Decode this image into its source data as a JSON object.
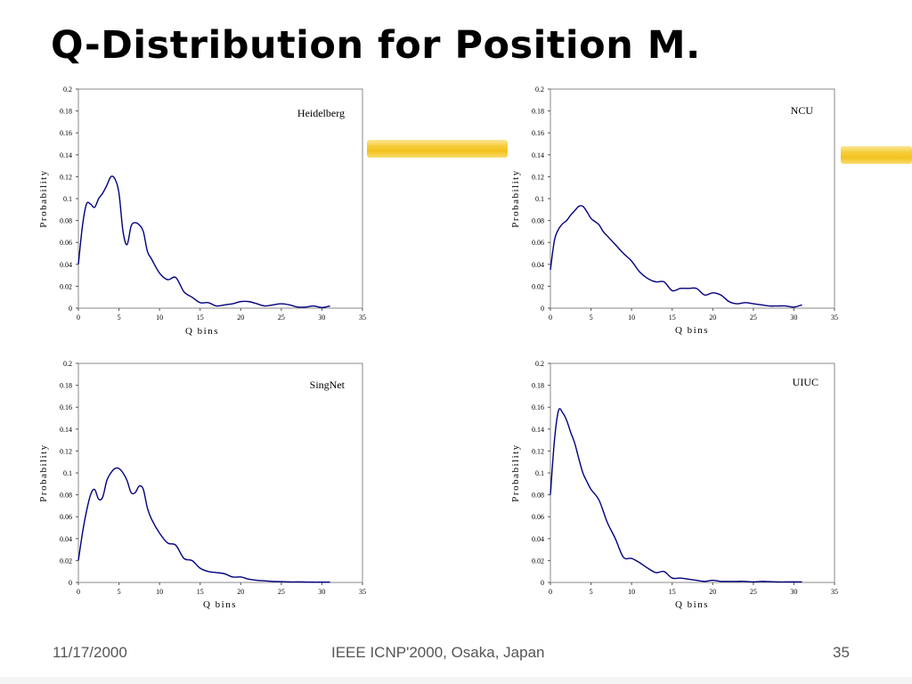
{
  "slide": {
    "title": "Q-Distribution for Position M.",
    "footer_date": "11/17/2000",
    "footer_conference": "IEEE ICNP'2000, Osaka, Japan",
    "footer_page": "35"
  },
  "colors": {
    "line": "#000080",
    "highlighter": "#f3c21f"
  },
  "chart_data": [
    {
      "type": "line",
      "label": "Heidelberg",
      "xlabel": "Q bins",
      "ylabel": "Probability",
      "xlim": [
        0,
        35
      ],
      "ylim": [
        0,
        0.2
      ],
      "xticks": [
        "0",
        "5",
        "10",
        "15",
        "20",
        "25",
        "30",
        "35"
      ],
      "yticks": [
        "0",
        "0.02",
        "0.04",
        "0.06",
        "0.08",
        "0.1",
        "0.12",
        "0.14",
        "0.16",
        "0.18",
        "0.2"
      ],
      "series": [
        {
          "x": [
            0,
            0.5,
            1,
            1.5,
            2,
            2.5,
            3,
            3.5,
            4,
            4.5,
            5,
            5.5,
            6,
            6.5,
            7,
            7.5,
            8,
            8.5,
            9,
            10,
            11,
            12,
            13,
            14,
            15,
            16,
            17,
            18,
            19,
            20,
            21,
            22,
            23,
            24,
            25,
            26,
            27,
            28,
            29,
            30,
            31
          ],
          "y": [
            0.04,
            0.075,
            0.095,
            0.095,
            0.092,
            0.1,
            0.105,
            0.112,
            0.12,
            0.118,
            0.105,
            0.07,
            0.058,
            0.075,
            0.078,
            0.076,
            0.07,
            0.052,
            0.045,
            0.032,
            0.026,
            0.028,
            0.015,
            0.01,
            0.005,
            0.005,
            0.002,
            0.003,
            0.004,
            0.006,
            0.006,
            0.004,
            0.002,
            0.003,
            0.004,
            0.003,
            0.001,
            0.001,
            0.002,
            0.0005,
            0.002
          ]
        }
      ]
    },
    {
      "type": "line",
      "label": "NCU",
      "xlabel": "Q bins",
      "ylabel": "Probability",
      "xlim": [
        0,
        35
      ],
      "ylim": [
        0,
        0.2
      ],
      "xticks": [
        "0",
        "5",
        "10",
        "15",
        "20",
        "25",
        "30",
        "35"
      ],
      "yticks": [
        "0",
        "0.02",
        "0.04",
        "0.06",
        "0.08",
        "0.1",
        "0.12",
        "0.14",
        "0.16",
        "0.18",
        "0.2"
      ],
      "series": [
        {
          "x": [
            0,
            0.5,
            1,
            1.5,
            2,
            2.5,
            3,
            3.5,
            4,
            4.5,
            5,
            5.5,
            6,
            6.5,
            7,
            8,
            9,
            10,
            11,
            12,
            13,
            14,
            15,
            16,
            17,
            18,
            19,
            20,
            21,
            22,
            23,
            24,
            25,
            26,
            27,
            28,
            29,
            30,
            31
          ],
          "y": [
            0.035,
            0.062,
            0.072,
            0.077,
            0.08,
            0.085,
            0.089,
            0.093,
            0.093,
            0.088,
            0.082,
            0.079,
            0.076,
            0.07,
            0.066,
            0.058,
            0.05,
            0.043,
            0.033,
            0.027,
            0.024,
            0.024,
            0.016,
            0.018,
            0.018,
            0.018,
            0.012,
            0.014,
            0.012,
            0.006,
            0.004,
            0.005,
            0.004,
            0.003,
            0.002,
            0.002,
            0.002,
            0.001,
            0.003
          ]
        }
      ]
    },
    {
      "type": "line",
      "label": "SingNet",
      "xlabel": "Q bins",
      "ylabel": "Probability",
      "xlim": [
        0,
        35
      ],
      "ylim": [
        0,
        0.2
      ],
      "xticks": [
        "0",
        "5",
        "10",
        "15",
        "20",
        "25",
        "30",
        "35"
      ],
      "yticks": [
        "0",
        "0.02",
        "0.04",
        "0.06",
        "0.08",
        "0.1",
        "0.12",
        "0.14",
        "0.16",
        "0.18",
        "0.2"
      ],
      "series": [
        {
          "x": [
            0,
            0.5,
            1,
            1.5,
            2,
            2.5,
            3,
            3.5,
            4,
            4.5,
            5,
            5.5,
            6,
            6.5,
            7,
            7.5,
            8,
            8.5,
            9,
            10,
            11,
            12,
            13,
            14,
            15,
            16,
            17,
            18,
            19,
            20,
            21,
            22,
            23,
            24,
            25,
            26,
            27,
            28,
            29,
            30,
            31
          ],
          "y": [
            0.02,
            0.045,
            0.065,
            0.08,
            0.085,
            0.076,
            0.078,
            0.093,
            0.1,
            0.104,
            0.104,
            0.1,
            0.093,
            0.082,
            0.082,
            0.088,
            0.085,
            0.068,
            0.058,
            0.045,
            0.036,
            0.034,
            0.022,
            0.02,
            0.013,
            0.01,
            0.009,
            0.008,
            0.005,
            0.005,
            0.003,
            0.002,
            0.0015,
            0.001,
            0.0008,
            0.0005,
            0.0005,
            0.0004,
            0.0003,
            0.0003,
            0.0003
          ]
        }
      ]
    },
    {
      "type": "line",
      "label": "UIUC",
      "xlabel": "Q bins",
      "ylabel": "Probability",
      "xlim": [
        0,
        35
      ],
      "ylim": [
        0,
        0.2
      ],
      "xticks": [
        "0",
        "5",
        "10",
        "15",
        "20",
        "25",
        "30",
        "35"
      ],
      "yticks": [
        "0",
        "0.02",
        "0.04",
        "0.06",
        "0.08",
        "0.1",
        "0.12",
        "0.14",
        "0.16",
        "0.18",
        "0.2"
      ],
      "series": [
        {
          "x": [
            0,
            0.5,
            1,
            1.5,
            2,
            2.5,
            3,
            3.5,
            4,
            4.5,
            5,
            6,
            7,
            8,
            9,
            10,
            11,
            12,
            13,
            14,
            15,
            16,
            17,
            18,
            19,
            20,
            21,
            22,
            23,
            24,
            25,
            26,
            27,
            28,
            29,
            30,
            31
          ],
          "y": [
            0.08,
            0.13,
            0.157,
            0.155,
            0.148,
            0.137,
            0.127,
            0.113,
            0.1,
            0.092,
            0.085,
            0.075,
            0.055,
            0.04,
            0.023,
            0.022,
            0.018,
            0.013,
            0.009,
            0.01,
            0.004,
            0.004,
            0.003,
            0.002,
            0.001,
            0.002,
            0.001,
            0.001,
            0.001,
            0.001,
            0.0005,
            0.001,
            0.0008,
            0.0005,
            0.0005,
            0.0005,
            0.0005
          ]
        }
      ]
    }
  ]
}
